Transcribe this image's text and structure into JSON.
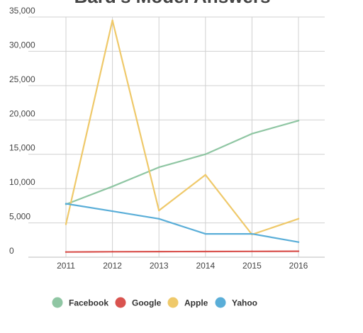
{
  "chart_data": {
    "type": "line",
    "title": "Bard's Model Answers",
    "xlabel": "",
    "ylabel": "",
    "categories": [
      "2011",
      "2012",
      "2013",
      "2014",
      "2015",
      "2016"
    ],
    "ylim": [
      0,
      35000
    ],
    "yticks": [
      0,
      5000,
      10000,
      15000,
      20000,
      25000,
      30000,
      35000
    ],
    "ytick_labels": [
      "0",
      "5,000",
      "10,000",
      "15,000",
      "20,000",
      "25,000",
      "30,000",
      "35,000"
    ],
    "grid": true,
    "legend_position": "bottom",
    "series": [
      {
        "name": "Facebook",
        "color": "#8fc6a3",
        "values": [
          7700,
          10300,
          13100,
          15000,
          18000,
          19900
        ]
      },
      {
        "name": "Google",
        "color": "#d9534f",
        "values": [
          750,
          800,
          820,
          830,
          850,
          870
        ]
      },
      {
        "name": "Apple",
        "color": "#efc96a",
        "values": [
          4800,
          34500,
          6800,
          12000,
          3300,
          5600
        ]
      },
      {
        "name": "Yahoo",
        "color": "#5aaed8",
        "values": [
          7800,
          6700,
          5600,
          3400,
          3400,
          2200
        ]
      }
    ]
  }
}
